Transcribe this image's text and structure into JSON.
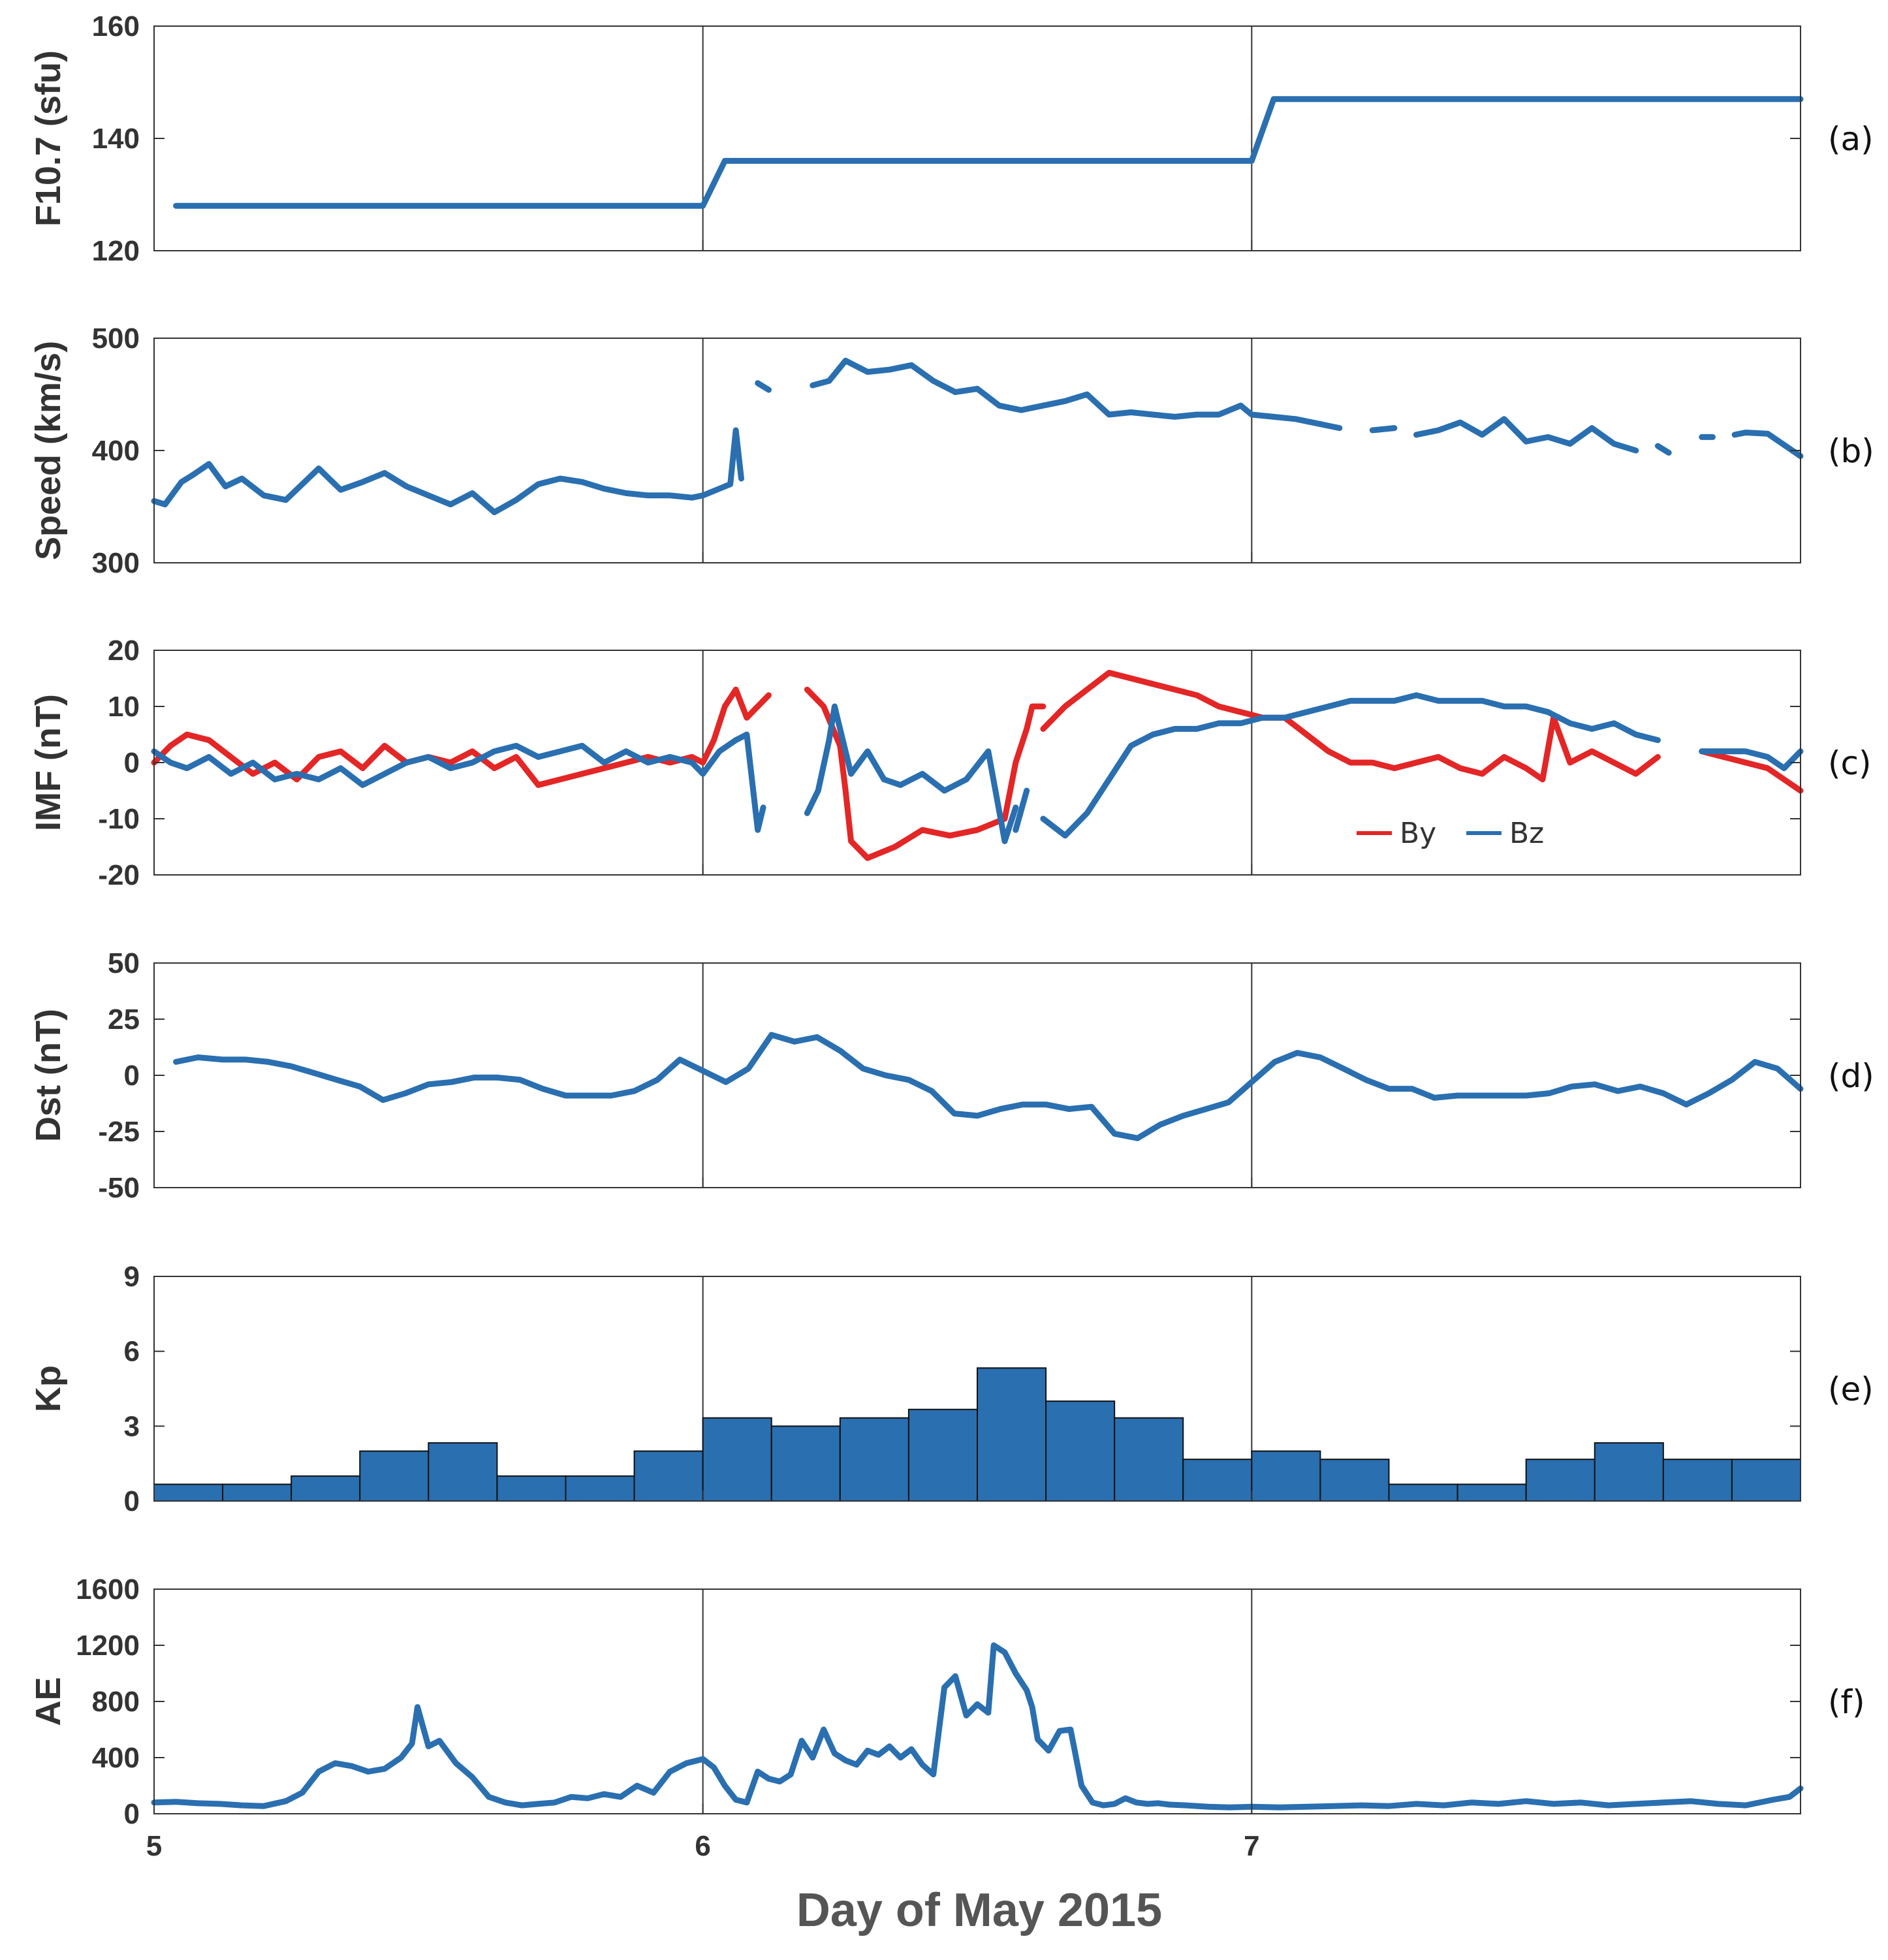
{
  "figure": {
    "xlabel": "Day of May 2015",
    "xlim": [
      5,
      8
    ],
    "xticks": [
      5,
      6,
      7
    ],
    "xtick_labels": [
      "5",
      "6",
      "7"
    ]
  },
  "chart_data": [
    {
      "id": "a",
      "panel_label": "(a)",
      "type": "line",
      "ylabel": "F10.7 (sfu)",
      "ylim": [
        120,
        160
      ],
      "yticks": [
        120,
        140,
        160
      ],
      "series": [
        {
          "name": "F10.7",
          "color": "#2a6fb0",
          "x": [
            5.04,
            6.0,
            6.04,
            7.0,
            7.04,
            8.0
          ],
          "y": [
            128,
            128,
            136,
            136,
            147,
            147
          ]
        }
      ]
    },
    {
      "id": "b",
      "panel_label": "(b)",
      "type": "line",
      "ylabel": "Speed (km/s)",
      "ylim": [
        300,
        500
      ],
      "yticks": [
        300,
        400,
        500
      ],
      "series": [
        {
          "name": "Speed",
          "color": "#2a6fb0",
          "x": [
            5.0,
            5.02,
            5.05,
            5.07,
            5.1,
            5.13,
            5.16,
            5.2,
            5.24,
            5.3,
            5.34,
            5.38,
            5.42,
            5.46,
            5.5,
            5.54,
            5.58,
            5.62,
            5.66,
            5.7,
            5.74,
            5.78,
            5.82,
            5.86,
            5.9,
            5.94,
            5.98,
            6.0,
            6.03,
            6.05,
            6.06,
            6.07,
            null,
            6.1,
            6.12,
            null,
            6.2,
            6.23,
            6.26,
            6.3,
            6.34,
            6.38,
            6.42,
            6.46,
            6.5,
            6.54,
            6.58,
            6.62,
            6.66,
            6.7,
            6.74,
            6.78,
            6.82,
            6.86,
            6.9,
            6.94,
            6.98,
            7.0,
            7.04,
            7.08,
            7.12,
            7.16,
            null,
            7.22,
            7.26,
            null,
            7.3,
            7.34,
            7.38,
            7.42,
            7.46,
            7.5,
            7.54,
            7.58,
            7.62,
            7.66,
            7.7,
            null,
            7.74,
            7.76,
            null,
            7.82,
            7.84,
            null,
            7.88,
            7.9,
            7.94,
            7.97,
            8.0
          ],
          "y": [
            355,
            352,
            372,
            378,
            388,
            368,
            375,
            360,
            356,
            384,
            365,
            372,
            380,
            368,
            360,
            352,
            362,
            345,
            356,
            370,
            375,
            372,
            366,
            362,
            360,
            360,
            358,
            360,
            366,
            370,
            418,
            375,
            null,
            460,
            454,
            null,
            458,
            462,
            480,
            470,
            472,
            476,
            462,
            452,
            455,
            440,
            436,
            440,
            444,
            450,
            432,
            434,
            432,
            430,
            432,
            432,
            440,
            432,
            430,
            428,
            424,
            420,
            null,
            418,
            420,
            null,
            414,
            418,
            425,
            414,
            428,
            408,
            412,
            406,
            420,
            406,
            400,
            null,
            404,
            398,
            null,
            412,
            412,
            null,
            414,
            416,
            415,
            405,
            395
          ]
        }
      ]
    },
    {
      "id": "c",
      "panel_label": "(c)",
      "type": "line",
      "ylabel": "IMF (nT)",
      "ylim": [
        -20,
        20
      ],
      "yticks": [
        -20,
        -10,
        0,
        10,
        20
      ],
      "legend": {
        "placement": "bottom-right",
        "entries": [
          "By",
          "Bz"
        ]
      },
      "series": [
        {
          "name": "By",
          "color": "#e32626",
          "x": [
            5.0,
            5.03,
            5.06,
            5.1,
            5.14,
            5.18,
            5.22,
            5.26,
            5.3,
            5.34,
            5.38,
            5.42,
            5.46,
            5.5,
            5.54,
            5.58,
            5.62,
            5.66,
            5.7,
            5.74,
            5.78,
            5.82,
            5.86,
            5.9,
            5.94,
            5.98,
            6.0,
            6.02,
            6.04,
            6.06,
            6.08,
            6.1,
            6.12,
            null,
            6.19,
            6.22,
            6.25,
            6.26,
            6.27,
            6.3,
            6.35,
            6.4,
            6.45,
            6.5,
            6.55,
            6.57,
            6.59,
            6.6,
            6.62,
            null,
            6.62,
            6.66,
            6.7,
            6.74,
            6.78,
            6.82,
            6.86,
            6.9,
            6.94,
            6.98,
            7.02,
            7.06,
            7.1,
            7.14,
            7.18,
            7.22,
            7.26,
            7.3,
            7.34,
            7.38,
            7.42,
            7.46,
            7.5,
            7.53,
            7.55,
            7.58,
            7.62,
            7.66,
            7.7,
            7.74,
            null,
            7.82,
            7.86,
            7.9,
            7.94,
            7.97,
            8.0
          ],
          "y": [
            0,
            3,
            5,
            4,
            1,
            -2,
            0,
            -3,
            1,
            2,
            -1,
            3,
            0,
            1,
            0,
            2,
            -1,
            1,
            -4,
            -3,
            -2,
            -1,
            0,
            1,
            0,
            1,
            0,
            4,
            10,
            13,
            8,
            10,
            12,
            null,
            13,
            10,
            3,
            -5,
            -14,
            -17,
            -15,
            -12,
            -13,
            -12,
            -10,
            0,
            6,
            10,
            10,
            null,
            6,
            10,
            13,
            16,
            15,
            14,
            13,
            12,
            10,
            9,
            8,
            8,
            5,
            2,
            0,
            0,
            -1,
            0,
            1,
            -1,
            -2,
            1,
            -1,
            -3,
            8,
            0,
            2,
            0,
            -2,
            1,
            null,
            2,
            1,
            0,
            -1,
            -3,
            -5
          ]
        },
        {
          "name": "Bz",
          "color": "#2a6fb0",
          "x": [
            5.0,
            5.03,
            5.06,
            5.1,
            5.14,
            5.18,
            5.22,
            5.26,
            5.3,
            5.34,
            5.38,
            5.42,
            5.46,
            5.5,
            5.54,
            5.58,
            5.62,
            5.66,
            5.7,
            5.74,
            5.78,
            5.82,
            5.86,
            5.9,
            5.94,
            5.98,
            6.0,
            6.03,
            6.06,
            6.08,
            6.1,
            6.11,
            null,
            6.19,
            6.21,
            6.23,
            6.24,
            6.25,
            6.27,
            6.3,
            6.33,
            6.36,
            6.4,
            6.44,
            6.48,
            6.52,
            6.55,
            6.57,
            null,
            6.57,
            6.59,
            null,
            6.62,
            6.66,
            6.7,
            6.74,
            6.78,
            6.82,
            6.86,
            6.9,
            6.94,
            6.98,
            7.02,
            7.06,
            7.1,
            7.14,
            7.18,
            7.22,
            7.26,
            7.3,
            7.34,
            7.38,
            7.42,
            7.46,
            7.5,
            7.54,
            7.58,
            7.62,
            7.66,
            7.7,
            7.74,
            null,
            7.82,
            7.86,
            7.9,
            7.94,
            7.97,
            8.0
          ],
          "y": [
            2,
            0,
            -1,
            1,
            -2,
            0,
            -3,
            -2,
            -3,
            -1,
            -4,
            -2,
            0,
            1,
            -1,
            0,
            2,
            3,
            1,
            2,
            3,
            0,
            2,
            0,
            1,
            0,
            -2,
            2,
            4,
            5,
            -12,
            -8,
            null,
            -9,
            -5,
            4,
            10,
            6,
            -2,
            2,
            -3,
            -4,
            -2,
            -5,
            -3,
            2,
            -14,
            -8,
            null,
            -12,
            -5,
            null,
            -10,
            -13,
            -9,
            -3,
            3,
            5,
            6,
            6,
            7,
            7,
            8,
            8,
            9,
            10,
            11,
            11,
            11,
            12,
            11,
            11,
            11,
            10,
            10,
            9,
            7,
            6,
            7,
            5,
            4,
            null,
            2,
            2,
            2,
            1,
            -1,
            2
          ]
        }
      ]
    },
    {
      "id": "d",
      "panel_label": "(d)",
      "type": "line",
      "ylabel": "Dst (nT)",
      "ylim": [
        -50,
        50
      ],
      "yticks": [
        -50,
        -25,
        0,
        25,
        50
      ],
      "series": [
        {
          "name": "Dst",
          "color": "#2a6fb0",
          "x": [
            5.04,
            5.08,
            5.125,
            5.167,
            5.208,
            5.25,
            5.292,
            5.333,
            5.375,
            5.417,
            5.458,
            5.5,
            5.542,
            5.583,
            5.625,
            5.667,
            5.708,
            5.75,
            5.792,
            5.833,
            5.875,
            5.917,
            5.958,
            6.0,
            6.042,
            6.083,
            6.125,
            6.167,
            6.208,
            6.25,
            6.292,
            6.333,
            6.375,
            6.417,
            6.458,
            6.5,
            6.542,
            6.583,
            6.625,
            6.667,
            6.708,
            6.75,
            6.792,
            6.833,
            6.875,
            6.917,
            6.958,
            7.0,
            7.042,
            7.083,
            7.125,
            7.167,
            7.208,
            7.25,
            7.292,
            7.333,
            7.375,
            7.417,
            7.458,
            7.5,
            7.542,
            7.583,
            7.625,
            7.667,
            7.708,
            7.75,
            7.792,
            7.833,
            7.875,
            7.917,
            7.958,
            8.0
          ],
          "y": [
            6,
            8,
            7,
            7,
            6,
            4,
            1,
            -2,
            -5,
            -11,
            -8,
            -4,
            -3,
            -1,
            -1,
            -2,
            -6,
            -9,
            -9,
            -9,
            -7,
            -2,
            7,
            2,
            -3,
            3,
            18,
            15,
            17,
            11,
            3,
            0,
            -2,
            -7,
            -17,
            -18,
            -15,
            -13,
            -13,
            -15,
            -14,
            -26,
            -28,
            -22,
            -18,
            -15,
            -12,
            -3,
            6,
            10,
            8,
            3,
            -2,
            -6,
            -6,
            -10,
            -9,
            -9,
            -9,
            -9,
            -8,
            -5,
            -4,
            -7,
            -5,
            -8,
            -13,
            -8,
            -2,
            6,
            3,
            -6
          ]
        }
      ]
    },
    {
      "id": "e",
      "panel_label": "(e)",
      "type": "bar",
      "ylabel": "Kp",
      "ylim": [
        0,
        9
      ],
      "yticks": [
        0,
        3,
        6,
        9
      ],
      "bar_width_days": 0.125,
      "bar_starts": [
        5.0,
        5.125,
        5.25,
        5.375,
        5.5,
        5.625,
        5.75,
        5.875,
        6.0,
        6.125,
        6.25,
        6.375,
        6.5,
        6.625,
        6.75,
        6.875,
        7.0,
        7.125,
        7.25,
        7.375,
        7.5,
        7.625,
        7.75,
        7.875
      ],
      "series": [
        {
          "name": "Kp",
          "color": "#2a6fb0",
          "values": [
            0.67,
            0.67,
            1.0,
            2.0,
            2.33,
            1.0,
            1.0,
            2.0,
            3.33,
            3.0,
            3.33,
            3.67,
            5.33,
            4.0,
            3.33,
            1.67,
            2.0,
            1.67,
            0.67,
            0.67,
            1.67,
            2.33,
            1.67,
            1.67
          ]
        }
      ]
    },
    {
      "id": "f",
      "panel_label": "(f)",
      "type": "line",
      "ylabel": "AE",
      "ylim": [
        0,
        1600
      ],
      "yticks": [
        0,
        400,
        800,
        1200,
        1600
      ],
      "series": [
        {
          "name": "AE",
          "color": "#2a6fb0",
          "x": [
            5.0,
            5.04,
            5.08,
            5.12,
            5.16,
            5.2,
            5.24,
            5.27,
            5.3,
            5.33,
            5.36,
            5.39,
            5.42,
            5.45,
            5.47,
            5.48,
            5.5,
            5.52,
            5.55,
            5.58,
            5.61,
            5.64,
            5.67,
            5.7,
            5.73,
            5.76,
            5.79,
            5.82,
            5.85,
            5.88,
            5.91,
            5.94,
            5.97,
            6.0,
            6.02,
            6.04,
            6.06,
            6.08,
            6.1,
            6.12,
            6.14,
            6.16,
            6.18,
            6.2,
            6.22,
            6.24,
            6.26,
            6.28,
            6.3,
            6.32,
            6.34,
            6.36,
            6.38,
            6.4,
            6.42,
            6.44,
            6.46,
            6.48,
            6.5,
            6.52,
            6.53,
            6.55,
            6.57,
            6.59,
            6.6,
            6.61,
            6.63,
            6.65,
            6.67,
            6.69,
            6.71,
            6.73,
            6.75,
            6.77,
            6.79,
            6.81,
            6.83,
            6.85,
            6.88,
            6.92,
            6.96,
            7.0,
            7.05,
            7.1,
            7.15,
            7.2,
            7.25,
            7.3,
            7.35,
            7.4,
            7.45,
            7.5,
            7.55,
            7.6,
            7.65,
            7.7,
            7.75,
            7.8,
            7.85,
            7.9,
            7.95,
            7.98,
            8.0
          ],
          "y": [
            80,
            85,
            75,
            70,
            60,
            55,
            90,
            150,
            300,
            360,
            340,
            300,
            320,
            400,
            500,
            760,
            480,
            520,
            360,
            260,
            120,
            80,
            60,
            70,
            80,
            120,
            110,
            140,
            120,
            200,
            150,
            300,
            360,
            390,
            330,
            200,
            100,
            80,
            300,
            250,
            230,
            280,
            520,
            400,
            600,
            430,
            380,
            350,
            450,
            420,
            480,
            400,
            460,
            350,
            280,
            900,
            980,
            700,
            780,
            720,
            1200,
            1150,
            1000,
            880,
            760,
            530,
            450,
            590,
            600,
            200,
            80,
            60,
            70,
            110,
            80,
            70,
            75,
            65,
            60,
            50,
            45,
            50,
            45,
            50,
            55,
            60,
            55,
            70,
            60,
            80,
            70,
            90,
            70,
            80,
            60,
            70,
            80,
            90,
            70,
            60,
            100,
            120,
            180
          ]
        }
      ]
    }
  ]
}
